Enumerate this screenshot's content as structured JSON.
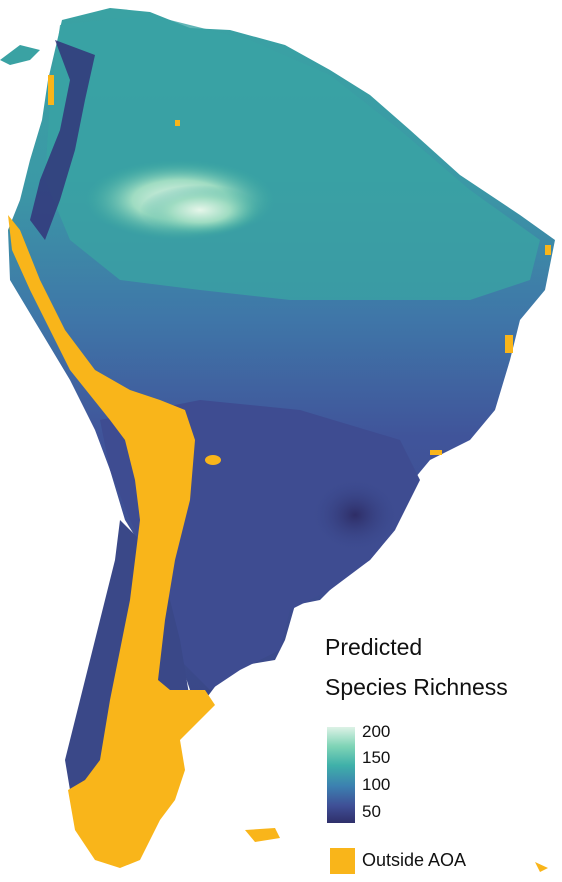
{
  "legend": {
    "title_line1": "Predicted",
    "title_line2": "Species Richness",
    "ticks": [
      "200",
      "150",
      "100",
      "50"
    ],
    "gradient_colors": [
      "#ddf2e6",
      "#7fd4b6",
      "#3fb0a9",
      "#3c7fb0",
      "#3f4f96",
      "#2f2f6a"
    ],
    "outside_label": "Outside AOA",
    "outside_color": "#f9b51a"
  }
}
